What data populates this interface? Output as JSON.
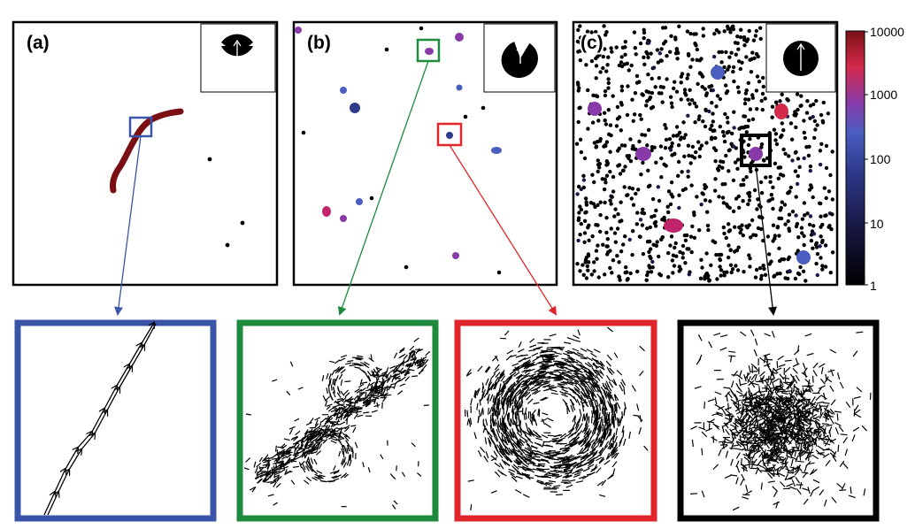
{
  "panels": [
    {
      "label": "(a)"
    },
    {
      "label": "(b)"
    },
    {
      "label": "(c)"
    }
  ],
  "colorbar": {
    "scale": "log",
    "range": [
      1,
      10000
    ],
    "tick_labels": [
      "10000",
      "1000",
      "100",
      "10",
      "1"
    ],
    "colors": [
      "#000000",
      "#1a1a4a",
      "#2e3a8c",
      "#4a5ec0",
      "#8a3aa8",
      "#d42a4a",
      "#7a0f14"
    ]
  },
  "zoom_frame_colors": {
    "blue": "#3a55a8",
    "green": "#1e8a3e",
    "red": "#e0262b",
    "black": "#000000"
  }
}
